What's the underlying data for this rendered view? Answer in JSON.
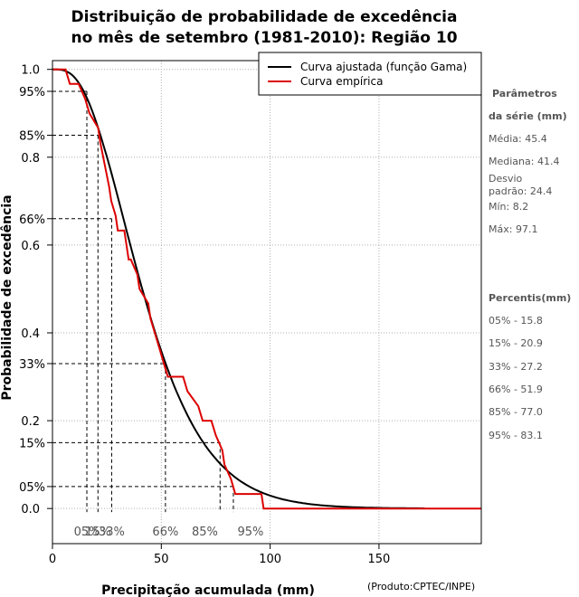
{
  "chart_data": {
    "type": "line",
    "title_line1": "Distribuição de probabilidade de excedência",
    "title_line2": "no mês de setembro (1981-2010): Região 10",
    "xlabel": "Precipitação acumulada (mm)",
    "ylabel": "Probabilidade de excedência",
    "credit": "(Produto:CPTEC/INPE)",
    "xlim": [
      0,
      197
    ],
    "ylim": [
      -0.08,
      1.02
    ],
    "x_ticks": [
      {
        "value": 0,
        "label": "0"
      },
      {
        "value": 50,
        "label": "50"
      },
      {
        "value": 100,
        "label": "100"
      },
      {
        "value": 150,
        "label": "150"
      }
    ],
    "y_ticks": [
      {
        "value": 0.0,
        "label": "0.0"
      },
      {
        "value": 0.2,
        "label": "0.2"
      },
      {
        "value": 0.4,
        "label": "0.4"
      },
      {
        "value": 0.6,
        "label": "0.6"
      },
      {
        "value": 0.8,
        "label": "0.8"
      },
      {
        "value": 1.0,
        "label": "1.0"
      }
    ],
    "y_pct_ticks": [
      {
        "value": 0.95,
        "label": "95%"
      },
      {
        "value": 0.85,
        "label": "85%"
      },
      {
        "value": 0.66,
        "label": "66%"
      },
      {
        "value": 0.33,
        "label": "33%"
      },
      {
        "value": 0.15,
        "label": "15%"
      },
      {
        "value": 0.05,
        "label": "05%"
      }
    ],
    "grid_x": [
      0,
      50,
      100,
      150
    ],
    "grid_y": [
      0.0,
      0.2,
      0.4,
      0.6,
      0.8,
      1.0
    ],
    "legend": [
      {
        "label": "Curva ajustada (função Gama)",
        "color": "#000000"
      },
      {
        "label": "Curva empírica",
        "color": "#dd0000"
      }
    ],
    "gamma_shape": 3.6,
    "gamma_scale": 12.6,
    "gamma_xmax": 171,
    "series": [
      {
        "name": "Curva empírica",
        "color": "#dd0000",
        "x": [
          0,
          6,
          8,
          12,
          15,
          17,
          21,
          22,
          26,
          27,
          29,
          30,
          32,
          33,
          34,
          35,
          36,
          39,
          40,
          44,
          45,
          47,
          49,
          51,
          53,
          60,
          62,
          67,
          69,
          73,
          75,
          78,
          79,
          82,
          84,
          87,
          96,
          97,
          197
        ],
        "y": [
          1.0,
          1.0,
          0.967,
          0.967,
          0.933,
          0.9,
          0.867,
          0.833,
          0.733,
          0.7,
          0.667,
          0.633,
          0.633,
          0.633,
          0.6,
          0.567,
          0.567,
          0.533,
          0.5,
          0.467,
          0.433,
          0.4,
          0.367,
          0.333,
          0.3,
          0.3,
          0.267,
          0.233,
          0.2,
          0.2,
          0.167,
          0.133,
          0.1,
          0.067,
          0.033,
          0.033,
          0.033,
          0.0,
          0.0
        ]
      }
    ],
    "percentile_markers": [
      {
        "label": "05%",
        "x": 15.8,
        "p": 0.95
      },
      {
        "label": "15%",
        "x": 20.9,
        "p": 0.85
      },
      {
        "label": "33%",
        "x": 27.2,
        "p": 0.66
      },
      {
        "label": "66%",
        "x": 51.9,
        "p": 0.33
      },
      {
        "label": "85%",
        "x": 77.0,
        "p": 0.15
      },
      {
        "label": "95%",
        "x": 83.1,
        "p": 0.05
      }
    ],
    "percentile_axis_labels": [
      {
        "label": "05%",
        "x": 15.8
      },
      {
        "label": "15%",
        "x": 20.9
      },
      {
        "label": "33%",
        "x": 27.2
      },
      {
        "label": "66%",
        "x": 51.9
      },
      {
        "label": "85%",
        "x": 70.0
      },
      {
        "label": "95%",
        "x": 91.0
      }
    ]
  },
  "sidebar": {
    "param_heading_1": "Parâmetros",
    "param_heading_2": "da série (mm)",
    "stats": [
      "Média: 45.4",
      "Mediana: 41.4",
      "Desvio",
      "padrão: 24.4",
      "Mín: 8.2",
      "Máx: 97.1"
    ],
    "percentis_heading": "Percentis(mm)",
    "percentis": [
      "05% - 15.8",
      "15% - 20.9",
      "33% - 27.2",
      "66% - 51.9",
      "85% - 77.0",
      "95% - 83.1"
    ]
  }
}
